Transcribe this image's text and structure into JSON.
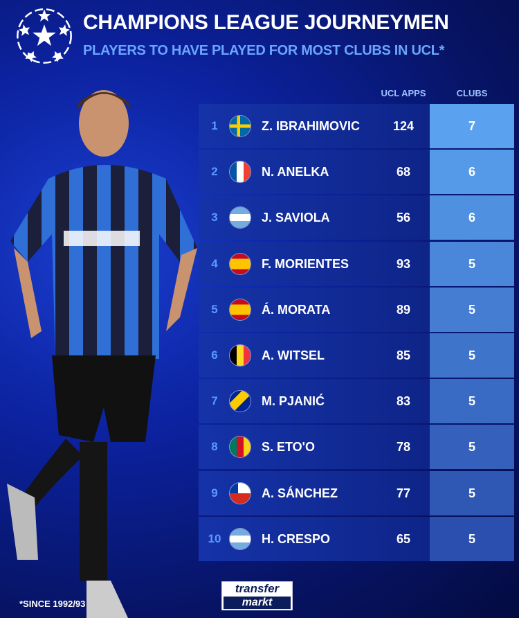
{
  "header": {
    "title": "CHAMPIONS LEAGUE JOURNEYMEN",
    "subtitle": "PLAYERS TO HAVE PLAYED FOR MOST CLUBS IN UCL*",
    "logo_icon": "ucl-starball-icon"
  },
  "columns": {
    "apps": "UCL APPS",
    "clubs": "CLUBS"
  },
  "colors": {
    "accent": "#6aa6ff",
    "clubs_top": "#5aa2f0",
    "clubs_bottom": "#2a4fae",
    "row_bg": "#1533a8"
  },
  "chart_data": {
    "type": "table",
    "title": "CHAMPIONS LEAGUE JOURNEYMEN",
    "subtitle": "PLAYERS TO HAVE PLAYED FOR MOST CLUBS IN UCL*",
    "columns": [
      "",
      "",
      "",
      "UCL APPS",
      "CLUBS"
    ],
    "rows": [
      {
        "rank": "1",
        "flag": "sweden",
        "name": "Z. IBRAHIMOVIC",
        "apps": "124",
        "clubs": "7"
      },
      {
        "rank": "2",
        "flag": "france",
        "name": "N. ANELKA",
        "apps": "68",
        "clubs": "6"
      },
      {
        "rank": "3",
        "flag": "argentina",
        "name": "J. SAVIOLA",
        "apps": "56",
        "clubs": "6"
      },
      {
        "rank": "4",
        "flag": "spain",
        "name": "F. MORIENTES",
        "apps": "93",
        "clubs": "5"
      },
      {
        "rank": "5",
        "flag": "spain",
        "name": "Á. MORATA",
        "apps": "89",
        "clubs": "5"
      },
      {
        "rank": "6",
        "flag": "belgium",
        "name": "A. WITSEL",
        "apps": "85",
        "clubs": "5"
      },
      {
        "rank": "7",
        "flag": "bosnia",
        "name": "M. PJANIĆ",
        "apps": "83",
        "clubs": "5"
      },
      {
        "rank": "8",
        "flag": "cameroon",
        "name": "S. ETO'O",
        "apps": "78",
        "clubs": "5"
      },
      {
        "rank": "9",
        "flag": "chile",
        "name": "A. SÁNCHEZ",
        "apps": "77",
        "clubs": "5"
      },
      {
        "rank": "10",
        "flag": "argentina",
        "name": "H. CRESPO",
        "apps": "65",
        "clubs": "5"
      }
    ]
  },
  "footer": {
    "note": "*SINCE 1992/93",
    "brand_line1": "transfer",
    "brand_line2": "markt"
  }
}
